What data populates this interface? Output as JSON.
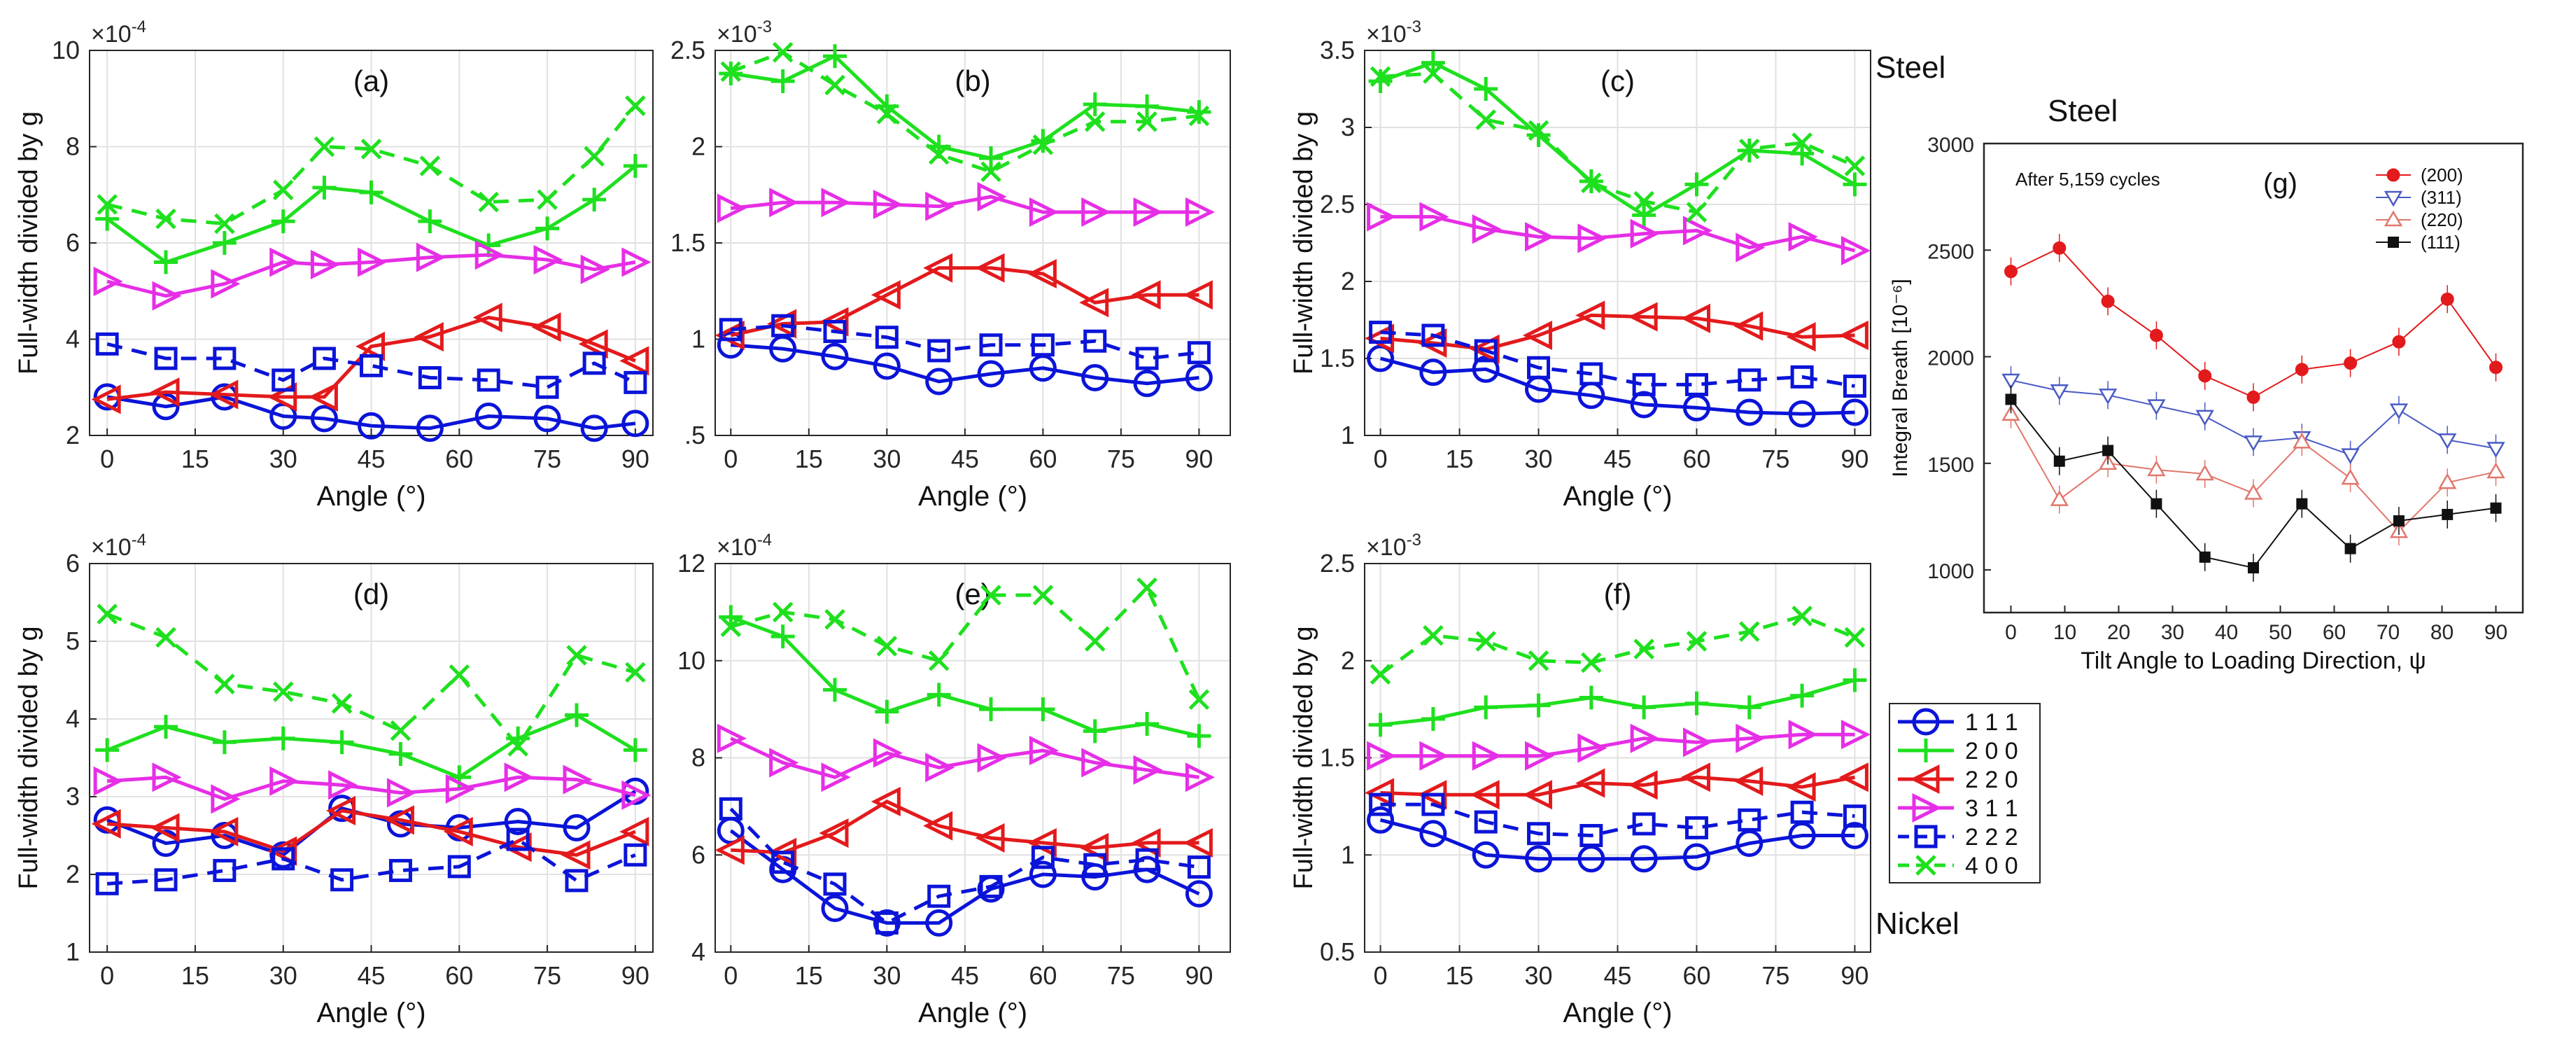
{
  "labels": {
    "steel": "Steel",
    "nickel": "Nickel",
    "steel_g": "Steel"
  },
  "styles": {
    "111": {
      "color": "#0b14d8",
      "marker": "circle",
      "dash": false
    },
    "200": {
      "color": "#1ee01e",
      "marker": "plus",
      "dash": false
    },
    "220": {
      "color": "#e31a1c",
      "marker": "tri-left",
      "dash": false
    },
    "311": {
      "color": "#e62ee6",
      "marker": "tri-right",
      "dash": false
    },
    "222": {
      "color": "#0b14d8",
      "marker": "square",
      "dash": true
    },
    "400": {
      "color": "#1ee01e",
      "marker": "x",
      "dash": true
    }
  },
  "chart_data": [
    {
      "id": "a",
      "type": "line",
      "title": "(a)",
      "xlabel": "Angle (°)",
      "ylabel": "Full-width divided by g",
      "exponent": "×10",
      "exponent_power": "-4",
      "x": [
        0,
        10,
        20,
        30,
        37,
        45,
        55,
        65,
        75,
        83,
        90
      ],
      "xticks": [
        0,
        15,
        30,
        45,
        60,
        75,
        90
      ],
      "xlim": [
        -3,
        93
      ],
      "ylim": [
        2,
        10
      ],
      "yticks": [
        2,
        4,
        6,
        8,
        10
      ],
      "ytick_labels": [
        "2",
        "4",
        "6",
        "8",
        "10"
      ],
      "series": [
        {
          "key": "111",
          "values": [
            2.8,
            2.6,
            2.8,
            2.4,
            2.35,
            2.2,
            2.15,
            2.4,
            2.35,
            2.15,
            2.25
          ]
        },
        {
          "key": "200",
          "values": [
            6.5,
            5.6,
            6.0,
            6.45,
            7.15,
            7.05,
            6.45,
            5.95,
            6.3,
            6.9,
            7.6
          ]
        },
        {
          "key": "220",
          "values": [
            2.75,
            2.9,
            2.85,
            2.8,
            2.8,
            3.85,
            4.05,
            4.45,
            4.25,
            3.9,
            3.55
          ]
        },
        {
          "key": "311",
          "values": [
            5.2,
            4.9,
            5.15,
            5.6,
            5.55,
            5.6,
            5.7,
            5.75,
            5.65,
            5.45,
            5.6
          ]
        },
        {
          "key": "222",
          "values": [
            3.9,
            3.6,
            3.6,
            3.15,
            3.6,
            3.45,
            3.2,
            3.15,
            3.0,
            3.5,
            3.1
          ]
        },
        {
          "key": "400",
          "values": [
            6.8,
            6.5,
            6.4,
            7.1,
            8.0,
            7.95,
            7.6,
            6.85,
            6.9,
            7.8,
            8.85
          ]
        }
      ]
    },
    {
      "id": "b",
      "type": "line",
      "title": "(b)",
      "xlabel": "Angle (°)",
      "ylabel": "",
      "exponent": "×10",
      "exponent_power": "-3",
      "x": [
        0,
        10,
        20,
        30,
        40,
        50,
        60,
        70,
        80,
        90
      ],
      "xticks": [
        0,
        15,
        30,
        45,
        60,
        75,
        90
      ],
      "xlim": [
        -3,
        96
      ],
      "ylim": [
        0.5,
        2.5
      ],
      "yticks": [
        0.5,
        1,
        1.5,
        2,
        2.5
      ],
      "ytick_labels": [
        ".5",
        "1",
        "1.5",
        "2",
        "2.5"
      ],
      "series": [
        {
          "key": "111",
          "values": [
            0.97,
            0.95,
            0.91,
            0.86,
            0.78,
            0.82,
            0.85,
            0.8,
            0.77,
            0.8
          ]
        },
        {
          "key": "200",
          "values": [
            2.38,
            2.34,
            2.47,
            2.21,
            2.0,
            1.94,
            2.03,
            2.22,
            2.21,
            2.18
          ]
        },
        {
          "key": "220",
          "values": [
            1.02,
            1.08,
            1.09,
            1.23,
            1.37,
            1.37,
            1.34,
            1.19,
            1.23,
            1.23
          ]
        },
        {
          "key": "311",
          "values": [
            1.68,
            1.71,
            1.71,
            1.7,
            1.69,
            1.74,
            1.66,
            1.66,
            1.66,
            1.66
          ]
        },
        {
          "key": "222",
          "values": [
            1.05,
            1.07,
            1.04,
            1.01,
            0.94,
            0.97,
            0.97,
            0.99,
            0.9,
            0.93
          ]
        },
        {
          "key": "400",
          "values": [
            2.39,
            2.49,
            2.32,
            2.17,
            1.96,
            1.87,
            2.01,
            2.13,
            2.13,
            2.16
          ]
        }
      ]
    },
    {
      "id": "c",
      "type": "line",
      "title": "(c)",
      "xlabel": "Angle (°)",
      "ylabel": "Full-width divided by g",
      "exponent": "×10",
      "exponent_power": "-3",
      "x": [
        0,
        10,
        20,
        30,
        40,
        50,
        60,
        70,
        80,
        90
      ],
      "xticks": [
        0,
        15,
        30,
        45,
        60,
        75,
        90
      ],
      "xlim": [
        -3,
        93
      ],
      "ylim": [
        1,
        3.5
      ],
      "yticks": [
        1,
        1.5,
        2,
        2.5,
        3,
        3.5
      ],
      "ytick_labels": [
        "1",
        "1.5",
        "2",
        "2.5",
        "3",
        "3.5"
      ],
      "series": [
        {
          "key": "111",
          "values": [
            1.5,
            1.41,
            1.43,
            1.3,
            1.26,
            1.2,
            1.18,
            1.15,
            1.14,
            1.15
          ]
        },
        {
          "key": "200",
          "values": [
            3.3,
            3.42,
            3.25,
            2.95,
            2.65,
            2.43,
            2.63,
            2.85,
            2.83,
            2.63
          ]
        },
        {
          "key": "220",
          "values": [
            1.63,
            1.6,
            1.56,
            1.65,
            1.78,
            1.77,
            1.76,
            1.71,
            1.64,
            1.65
          ]
        },
        {
          "key": "311",
          "values": [
            2.42,
            2.42,
            2.34,
            2.29,
            2.28,
            2.31,
            2.33,
            2.22,
            2.29,
            2.2
          ]
        },
        {
          "key": "222",
          "values": [
            1.67,
            1.65,
            1.55,
            1.44,
            1.4,
            1.33,
            1.33,
            1.36,
            1.38,
            1.32
          ]
        },
        {
          "key": "400",
          "values": [
            3.33,
            3.35,
            3.05,
            2.98,
            2.64,
            2.52,
            2.45,
            2.86,
            2.9,
            2.75
          ]
        }
      ]
    },
    {
      "id": "d",
      "type": "line",
      "title": "(d)",
      "xlabel": "Angle (°)",
      "ylabel": "Full-width divided by g",
      "exponent": "×10",
      "exponent_power": "-4",
      "x": [
        0,
        10,
        20,
        30,
        40,
        50,
        60,
        70,
        80,
        90
      ],
      "xticks": [
        0,
        15,
        30,
        45,
        60,
        75,
        90
      ],
      "xlim": [
        -3,
        93
      ],
      "ylim": [
        1,
        6
      ],
      "yticks": [
        1,
        2,
        3,
        4,
        5,
        6
      ],
      "ytick_labels": [
        "1",
        "2",
        "3",
        "4",
        "5",
        "6"
      ],
      "series": [
        {
          "key": "111",
          "values": [
            2.7,
            2.4,
            2.5,
            2.25,
            2.85,
            2.65,
            2.6,
            2.68,
            2.6,
            3.07
          ]
        },
        {
          "key": "200",
          "values": [
            3.6,
            3.9,
            3.7,
            3.75,
            3.7,
            3.55,
            3.25,
            3.75,
            4.05,
            3.6
          ]
        },
        {
          "key": "220",
          "values": [
            2.65,
            2.6,
            2.55,
            2.3,
            2.82,
            2.7,
            2.55,
            2.35,
            2.25,
            2.55
          ]
        },
        {
          "key": "311",
          "values": [
            3.2,
            3.25,
            2.97,
            3.2,
            3.15,
            3.05,
            3.1,
            3.25,
            3.22,
            3.02
          ]
        },
        {
          "key": "222",
          "values": [
            1.88,
            1.93,
            2.05,
            2.2,
            1.93,
            2.05,
            2.1,
            2.45,
            1.92,
            2.25
          ]
        },
        {
          "key": "400",
          "values": [
            5.35,
            5.05,
            4.45,
            4.35,
            4.2,
            3.85,
            4.57,
            3.65,
            4.82,
            4.6
          ]
        }
      ]
    },
    {
      "id": "e",
      "type": "line",
      "title": "(e)",
      "xlabel": "Angle (°)",
      "ylabel": "",
      "exponent": "×10",
      "exponent_power": "-4",
      "x": [
        0,
        10,
        20,
        30,
        40,
        50,
        60,
        70,
        80,
        90
      ],
      "xticks": [
        0,
        15,
        30,
        45,
        60,
        75,
        90
      ],
      "xlim": [
        -3,
        96
      ],
      "ylim": [
        4,
        12
      ],
      "yticks": [
        4,
        6,
        8,
        10,
        12
      ],
      "ytick_labels": [
        "4",
        "6",
        "8",
        "10",
        "12"
      ],
      "series": [
        {
          "key": "111",
          "values": [
            6.5,
            5.7,
            4.9,
            4.6,
            4.6,
            5.3,
            5.6,
            5.55,
            5.7,
            5.2
          ]
        },
        {
          "key": "200",
          "values": [
            10.9,
            10.5,
            9.4,
            8.95,
            9.3,
            9.0,
            9.0,
            8.55,
            8.7,
            8.45
          ]
        },
        {
          "key": "220",
          "values": [
            6.1,
            6.05,
            6.45,
            7.1,
            6.6,
            6.35,
            6.25,
            6.15,
            6.25,
            6.25
          ]
        },
        {
          "key": "311",
          "values": [
            8.4,
            7.9,
            7.6,
            8.1,
            7.8,
            8.0,
            8.15,
            7.9,
            7.75,
            7.6
          ]
        },
        {
          "key": "222",
          "values": [
            6.95,
            5.85,
            5.4,
            4.6,
            5.15,
            5.35,
            5.95,
            5.8,
            5.9,
            5.75
          ]
        },
        {
          "key": "400",
          "values": [
            10.7,
            11.0,
            10.85,
            10.3,
            10.0,
            11.35,
            11.35,
            10.4,
            11.5,
            9.2
          ]
        }
      ]
    },
    {
      "id": "f",
      "type": "line",
      "title": "(f)",
      "xlabel": "Angle (°)",
      "ylabel": "Full-width divided by g",
      "exponent": "×10",
      "exponent_power": "-3",
      "x": [
        0,
        10,
        20,
        30,
        40,
        50,
        60,
        70,
        80,
        90
      ],
      "xticks": [
        0,
        15,
        30,
        45,
        60,
        75,
        90
      ],
      "xlim": [
        -3,
        93
      ],
      "ylim": [
        0.5,
        2.5
      ],
      "yticks": [
        0.5,
        1,
        1.5,
        2,
        2.5
      ],
      "ytick_labels": [
        "0.5",
        "1",
        "1.5",
        "2",
        "2.5"
      ],
      "series": [
        {
          "key": "111",
          "values": [
            1.18,
            1.11,
            1.0,
            0.98,
            0.98,
            0.98,
            0.99,
            1.06,
            1.1,
            1.1
          ]
        },
        {
          "key": "200",
          "values": [
            1.67,
            1.7,
            1.76,
            1.77,
            1.81,
            1.76,
            1.78,
            1.76,
            1.82,
            1.9
          ]
        },
        {
          "key": "220",
          "values": [
            1.32,
            1.31,
            1.31,
            1.31,
            1.37,
            1.36,
            1.4,
            1.38,
            1.35,
            1.4
          ]
        },
        {
          "key": "311",
          "values": [
            1.51,
            1.51,
            1.51,
            1.51,
            1.55,
            1.6,
            1.58,
            1.6,
            1.62,
            1.62
          ]
        },
        {
          "key": "222",
          "values": [
            1.26,
            1.26,
            1.17,
            1.11,
            1.1,
            1.16,
            1.14,
            1.18,
            1.22,
            1.2
          ]
        },
        {
          "key": "400",
          "values": [
            1.93,
            2.13,
            2.1,
            2.0,
            1.99,
            2.06,
            2.1,
            2.15,
            2.23,
            2.12
          ]
        }
      ]
    },
    {
      "id": "g",
      "type": "line",
      "title": "(g)",
      "xlabel": "Tilt Angle to Loading Direction, ψ",
      "ylabel": "Integral Breath [10⁻⁶]",
      "annotation": "After 5,159 cycles",
      "x": [
        0,
        9,
        18,
        27,
        36,
        45,
        54,
        63,
        72,
        81,
        90
      ],
      "xticks": [
        0,
        10,
        20,
        30,
        40,
        50,
        60,
        70,
        80,
        90
      ],
      "xlim": [
        -5,
        95
      ],
      "ylim": [
        800,
        3000
      ],
      "yticks": [
        1000,
        1500,
        2000,
        2500,
        3000
      ],
      "ytick_labels": [
        "1000",
        "1500",
        "2000",
        "2500",
        "3000"
      ],
      "series": [
        {
          "name": "(200)",
          "color": "#e31a1c",
          "marker": "dot",
          "values": [
            2400,
            2510,
            2260,
            2100,
            1910,
            1810,
            1940,
            1970,
            2070,
            2270,
            1950
          ]
        },
        {
          "name": "(311)",
          "color": "#4a5bc4",
          "marker": "tri-down",
          "values": [
            1890,
            1840,
            1820,
            1770,
            1720,
            1600,
            1620,
            1540,
            1750,
            1610,
            1570
          ]
        },
        {
          "name": "(220)",
          "color": "#e0776c",
          "marker": "tri-up",
          "values": [
            1730,
            1330,
            1500,
            1470,
            1450,
            1360,
            1600,
            1430,
            1180,
            1410,
            1460
          ]
        },
        {
          "name": "(111)",
          "color": "#111111",
          "marker": "square-fill",
          "values": [
            1800,
            1510,
            1560,
            1310,
            1060,
            1010,
            1310,
            1100,
            1230,
            1260,
            1290
          ]
        }
      ]
    }
  ],
  "legend": [
    {
      "key": "111",
      "label": "1 1 1"
    },
    {
      "key": "200",
      "label": "2 0 0"
    },
    {
      "key": "220",
      "label": "2 2 0"
    },
    {
      "key": "311",
      "label": "3 1 1"
    },
    {
      "key": "222",
      "label": "2 2 2"
    },
    {
      "key": "400",
      "label": "4 0 0"
    }
  ]
}
